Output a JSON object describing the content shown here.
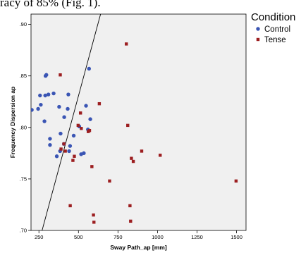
{
  "caption": "racy of 85% (Fig. 1).",
  "chart_data": {
    "type": "scatter",
    "xlabel": "Sway Path_ap [mm]",
    "ylabel": "Frequency Dispersion ap",
    "xlim": [
      200,
      1560
    ],
    "ylim": [
      0.7,
      0.91
    ],
    "x_ticks": [
      250,
      500,
      750,
      1000,
      1250,
      1500
    ],
    "x_tick_labels": [
      "250",
      "500",
      "750",
      "1000",
      "1250",
      "1500"
    ],
    "y_ticks": [
      0.7,
      0.75,
      0.8,
      0.85,
      0.9
    ],
    "y_tick_labels": [
      ".70",
      ".75",
      ".80",
      ".85",
      ".90"
    ],
    "grid": false,
    "background": "#f0f0f0",
    "legend": {
      "title": "Condition",
      "position": "right"
    },
    "series": [
      {
        "name": "Control",
        "color": "#3a55b4",
        "marker": "circle",
        "points": [
          [
            205,
            0.817
          ],
          [
            245,
            0.818
          ],
          [
            257,
            0.831
          ],
          [
            262,
            0.822
          ],
          [
            285,
            0.806
          ],
          [
            290,
            0.831
          ],
          [
            292,
            0.85
          ],
          [
            297,
            0.851
          ],
          [
            310,
            0.832
          ],
          [
            343,
            0.833
          ],
          [
            378,
            0.82
          ],
          [
            320,
            0.783
          ],
          [
            320,
            0.789
          ],
          [
            363,
            0.772
          ],
          [
            387,
            0.794
          ],
          [
            408,
            0.784
          ],
          [
            384,
            0.777
          ],
          [
            410,
            0.81
          ],
          [
            441,
            0.777
          ],
          [
            447,
            0.782
          ],
          [
            432,
            0.818
          ],
          [
            436,
            0.832
          ],
          [
            470,
            0.792
          ],
          [
            505,
            0.801
          ],
          [
            517,
            0.774
          ],
          [
            534,
            0.775
          ],
          [
            548,
            0.821
          ],
          [
            560,
            0.798
          ],
          [
            575,
            0.808
          ],
          [
            567,
            0.857
          ]
        ]
      },
      {
        "name": "Tense",
        "color": "#9c1e20",
        "marker": "square",
        "points": [
          [
            385,
            0.851
          ],
          [
            390,
            0.779
          ],
          [
            408,
            0.784
          ],
          [
            417,
            0.777
          ],
          [
            448,
            0.724
          ],
          [
            465,
            0.768
          ],
          [
            474,
            0.772
          ],
          [
            498,
            0.802
          ],
          [
            513,
            0.814
          ],
          [
            518,
            0.799
          ],
          [
            562,
            0.796
          ],
          [
            570,
            0.797
          ],
          [
            585,
            0.762
          ],
          [
            595,
            0.715
          ],
          [
            598,
            0.708
          ],
          [
            632,
            0.823
          ],
          [
            697,
            0.748
          ],
          [
            803,
            0.881
          ],
          [
            812,
            0.802
          ],
          [
            826,
            0.724
          ],
          [
            830,
            0.709
          ],
          [
            835,
            0.77
          ],
          [
            847,
            0.767
          ],
          [
            900,
            0.777
          ],
          [
            1017,
            0.773
          ],
          [
            1497,
            0.748
          ]
        ]
      }
    ],
    "reference_line": {
      "points": [
        [
          270,
          0.7
        ],
        [
          640,
          0.91
        ]
      ],
      "color": "#000000"
    }
  }
}
